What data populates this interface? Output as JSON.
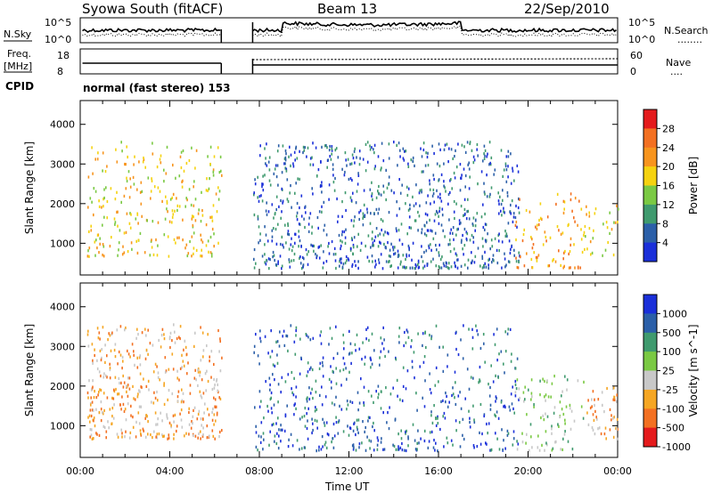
{
  "header": {
    "station": "Syowa South (fitACF)",
    "beam": "Beam 13",
    "date": "22/Sep/2010"
  },
  "strip1": {
    "left_label": "N.Sky",
    "left_ticks": [
      "10^5",
      "10^0"
    ],
    "right_ticks": [
      "10^5",
      "10^0"
    ],
    "right_label": "N.Search",
    "right_key": "........"
  },
  "strip2": {
    "left_label_1": "Freq.",
    "left_label_2": "[MHz]",
    "left_ticks": [
      "18",
      "8"
    ],
    "right_ticks": [
      "60",
      "0"
    ],
    "right_label": "Nave",
    "right_key": "....",
    "cpid_label": "CPID",
    "cpid_text": "normal (fast stereo) 153"
  },
  "time_axis": {
    "label": "Time UT",
    "ticks": [
      "00:00",
      "04:00",
      "08:00",
      "12:00",
      "16:00",
      "20:00",
      "00:00"
    ]
  },
  "chart_data": [
    {
      "type": "heatmap",
      "name": "power",
      "ylabel": "Slant Range [km]",
      "xlabel": "Time UT",
      "yticks": [
        "1000",
        "2000",
        "3000",
        "4000"
      ],
      "ylim": [
        200,
        4600
      ],
      "xlim_hours": [
        0,
        24
      ],
      "colorbar": {
        "label": "Power [dB]",
        "ticks": [
          "28",
          "24",
          "20",
          "16",
          "12",
          "8",
          "4"
        ],
        "colors": [
          "#e41a1c",
          "#f37021",
          "#f7941d",
          "#f5d20f",
          "#7ac943",
          "#3f9a6e",
          "#2b5fa8",
          "#1a2fd9"
        ]
      },
      "regions": [
        {
          "t0": 0.3,
          "t1": 6.3,
          "r0": 700,
          "r1": 3600,
          "level": 3
        },
        {
          "t0": 7.7,
          "t1": 19.6,
          "r0": 400,
          "r1": 3600,
          "level": 6
        },
        {
          "t0": 19.4,
          "t1": 22.5,
          "r0": 400,
          "r1": 2300,
          "level": 2
        },
        {
          "t0": 22.5,
          "t1": 24.0,
          "r0": 700,
          "r1": 2000,
          "level": 3
        }
      ]
    },
    {
      "type": "heatmap",
      "name": "velocity",
      "ylabel": "Slant Range [km]",
      "xlabel": "Time UT",
      "yticks": [
        "1000",
        "2000",
        "3000",
        "4000"
      ],
      "ylim": [
        200,
        4600
      ],
      "xlim_hours": [
        0,
        24
      ],
      "colorbar": {
        "label": "Velocity [m s^-1]",
        "ticks": [
          "1000",
          "500",
          "100",
          "25",
          "-25",
          "-100",
          "-500",
          "-1000"
        ],
        "colors": [
          "#1a2fd9",
          "#2b5fa8",
          "#3f9a6e",
          "#7ac943",
          "#c8c8c8",
          "#f5a623",
          "#f37021",
          "#e41a1c"
        ]
      },
      "regions": [
        {
          "t0": 0.3,
          "t1": 6.3,
          "r0": 700,
          "r1": 3600,
          "level": 5
        },
        {
          "t0": 7.7,
          "t1": 19.6,
          "r0": 400,
          "r1": 3600,
          "level": 1
        },
        {
          "t0": 19.4,
          "t1": 22.5,
          "r0": 400,
          "r1": 2300,
          "level": 3
        },
        {
          "t0": 22.5,
          "t1": 24.0,
          "r0": 700,
          "r1": 2000,
          "level": 5
        }
      ]
    }
  ]
}
